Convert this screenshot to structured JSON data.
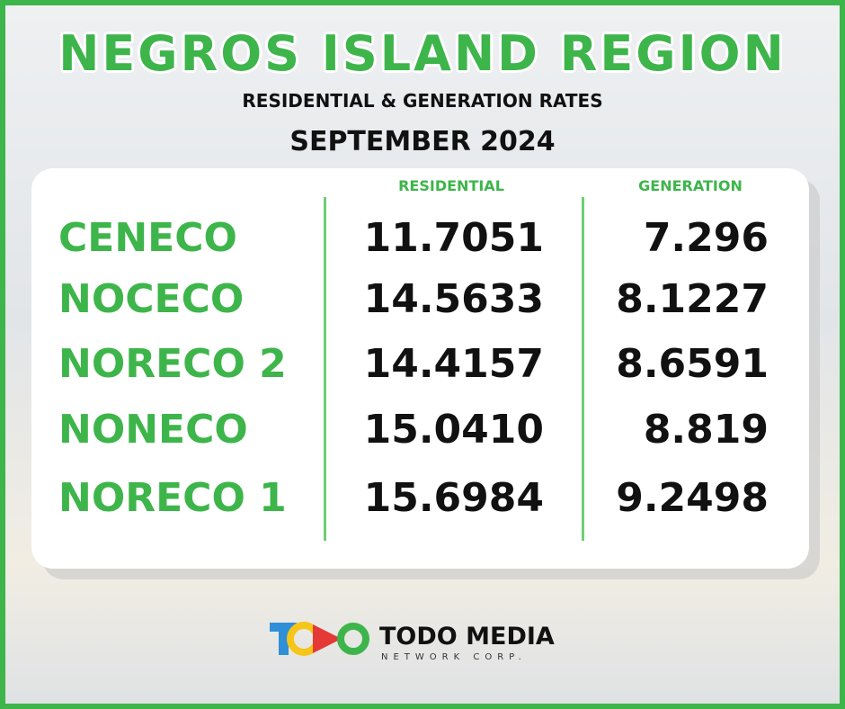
{
  "header": {
    "title": "NEGROS ISLAND REGION",
    "subtitle": "RESIDENTIAL & GENERATION RATES",
    "period": "SEPTEMBER 2024"
  },
  "table": {
    "columns": [
      "RESIDENTIAL",
      "GENERATION"
    ],
    "rows": [
      [
        "CENECO",
        "11.7051",
        "7.296"
      ],
      [
        "NOCECO",
        "14.5633",
        "8.1227"
      ],
      [
        "NORECO 2",
        "14.4157",
        "8.6591"
      ],
      [
        "NONECO",
        "15.0410",
        "8.819"
      ],
      [
        "NORECO 1",
        "15.6984",
        "9.2498"
      ]
    ]
  },
  "footer": {
    "brand": "TODO MEDIA",
    "tagline": "NETWORK CORP."
  }
}
